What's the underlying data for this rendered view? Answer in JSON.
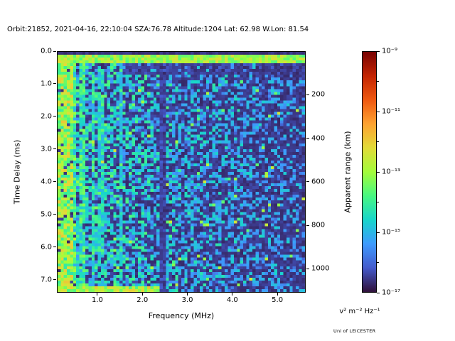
{
  "figure": {
    "title": "Orbit:21852, 2021-04-16, 22:10:04 SZA:76.78 Altitude:1204 Lat: 62.98 W.Lon: 81.54",
    "credit": "Uni of LEICESTER"
  },
  "chart_data": {
    "type": "heatmap",
    "title": "Orbit:21852, 2021-04-16, 22:10:04 SZA:76.78 Altitude:1204 Lat: 62.98 W.Lon: 81.54",
    "x_axis": {
      "label": "Frequency (MHz)",
      "range": [
        0.1,
        5.63
      ],
      "ticks": [
        1.0,
        2.0,
        3.0,
        4.0,
        5.0
      ],
      "tick_labels": [
        "1.0",
        "2.0",
        "3.0",
        "4.0",
        "5.0"
      ]
    },
    "y_axis": {
      "label": "Time Delay (ms)",
      "range": [
        0,
        7.4
      ],
      "ticks": [
        0,
        1,
        2,
        3,
        4,
        5,
        6,
        7
      ],
      "tick_labels": [
        "0.0",
        "1.0",
        "2.0",
        "3.0",
        "4.0",
        "5.0",
        "6.0",
        "7.0"
      ]
    },
    "y2_axis": {
      "label": "Apparent range (km)",
      "km_per_ms": 150,
      "ticks_km": [
        200,
        400,
        600,
        800,
        1000
      ],
      "tick_labels": [
        "200",
        "400",
        "600",
        "800",
        "1000"
      ]
    },
    "colorbar": {
      "label": "v² m⁻² Hz⁻¹",
      "log_range": [
        -17,
        -9
      ],
      "tick_exponents": [
        -9,
        -11,
        -13,
        -15,
        -17
      ],
      "tick_labels": [
        "10⁻⁹",
        "10⁻¹¹",
        "10⁻¹³",
        "10⁻¹⁵",
        "10⁻¹⁷"
      ],
      "minor_tick_exponents": [
        -10,
        -12,
        -14,
        -16
      ]
    },
    "grid": {
      "cols": 80,
      "rows": 84
    },
    "colormap": {
      "name": "turbo-like",
      "stops": [
        [
          0.0,
          48,
          18,
          59
        ],
        [
          0.1,
          69,
          91,
          205
        ],
        [
          0.2,
          62,
          155,
          254
        ],
        [
          0.3,
          24,
          214,
          203
        ],
        [
          0.4,
          72,
          248,
          130
        ],
        [
          0.5,
          164,
          252,
          59
        ],
        [
          0.6,
          226,
          220,
          56
        ],
        [
          0.7,
          254,
          163,
          49
        ],
        [
          0.8,
          239,
          89,
          17
        ],
        [
          0.9,
          196,
          37,
          3
        ],
        [
          1.0,
          122,
          4,
          3
        ]
      ]
    },
    "features": [
      "bright green echo band at ~0.2 ms across all frequencies",
      "strong vertical ionospheric echo stripes below ~1.65 MHz, solid bright below ~0.4 MHz",
      "dark horizontal lane ~0.4-0.7 ms for frequencies above ~1.5 MHz",
      "dark vertical interference gap near 2.4 MHz over full delay range",
      "bright ground-echo band at ~7.3 ms for frequencies below ~2.45 MHz",
      "blue speckle noise whose density and intensity decrease with frequency"
    ],
    "noise_model": {
      "seed": 11,
      "background": [
        0.03,
        0.045
      ],
      "speckle": {
        "density_base": 0.72,
        "density_slope": 0.085,
        "density_min": 0.15,
        "density_max": 0.8,
        "amp_base": 0.3,
        "amp_slope": 0.035
      },
      "rare_bright": {
        "prob": 0.015,
        "base": 0.4,
        "amp": 0.18
      },
      "stripe_region": {
        "f_max": 1.65,
        "solid_f_max": 0.42,
        "solid_base": 0.34,
        "solid_amp": 0.3,
        "col_threshold": 0.5,
        "gap_prob": 0.08
      },
      "top_band": {
        "d0": 0.1,
        "d1": 0.34,
        "base": 0.4,
        "amp": 0.2
      },
      "dark_lane": {
        "d0": 0.36,
        "d1": 0.72,
        "f_min": 1.55,
        "level": 0.055
      },
      "bottom_band": {
        "d0": 7.18,
        "d1": 7.42,
        "f0": 0.2,
        "f1": 2.45,
        "base": 0.4,
        "amp": 0.24
      },
      "dark_column": {
        "f0": 2.36,
        "f1": 2.5,
        "d_min": 0.33,
        "level": 0.05
      }
    }
  }
}
